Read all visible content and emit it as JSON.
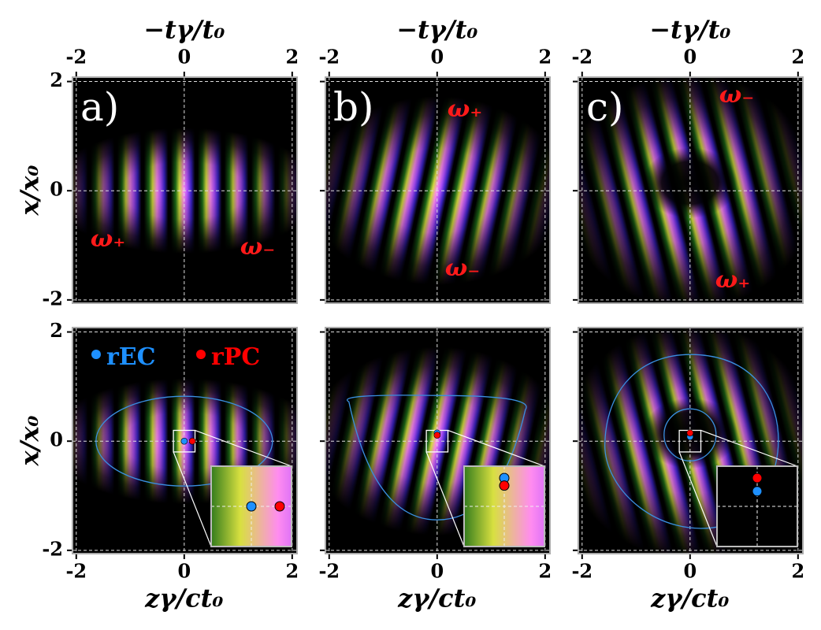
{
  "chart_data": [
    {
      "type": "image",
      "panel_label": "a)",
      "x2label": "−tγ/t₀",
      "ylabel": "x/x₀",
      "x2lim": [
        -2.07,
        2.09
      ],
      "ylim": [
        -2.06,
        2.08
      ],
      "x2ticks": [
        -2,
        0,
        2
      ],
      "yticks": [
        -2,
        0,
        2
      ],
      "annotations": [
        "ω₊",
        "ω₋"
      ]
    },
    {
      "type": "image",
      "panel_label": "b)",
      "x2label": "−tγ/t₀",
      "x2lim": [
        -2.07,
        2.09
      ],
      "ylim": [
        -2.06,
        2.08
      ],
      "x2ticks": [
        -2,
        0,
        2
      ],
      "yticks": [
        -2,
        0,
        2
      ],
      "annotations": [
        "ω₊",
        "ω₋"
      ]
    },
    {
      "type": "image",
      "panel_label": "c)",
      "x2label": "−tγ/t₀",
      "x2lim": [
        -2.07,
        2.09
      ],
      "ylim": [
        -2.06,
        2.08
      ],
      "x2ticks": [
        -2,
        0,
        2
      ],
      "yticks": [
        -2,
        0,
        2
      ],
      "annotations": [
        "ω₋",
        "ω₊"
      ]
    },
    {
      "type": "scatter",
      "xlabel": "zγ/ct₀",
      "ylabel": "x/x₀",
      "xlim": [
        -2.07,
        2.09
      ],
      "ylim": [
        -2.06,
        2.08
      ],
      "xticks": [
        -2,
        0,
        2
      ],
      "yticks": [
        -2,
        0,
        2
      ],
      "series": [
        {
          "name": "rEC",
          "color": "#1e90ff",
          "x": [
            0
          ],
          "values": [
            0
          ]
        },
        {
          "name": "rPC",
          "color": "#ff0000",
          "x": [
            0.15
          ],
          "values": [
            0
          ]
        }
      ]
    },
    {
      "type": "scatter",
      "xlabel": "zγ/ct₀",
      "xlim": [
        -2.07,
        2.09
      ],
      "ylim": [
        -2.06,
        2.08
      ],
      "xticks": [
        -2,
        0,
        2
      ],
      "yticks": [
        -2,
        0,
        2
      ],
      "series": [
        {
          "color": "#1e90ff",
          "x": [
            0
          ],
          "values": [
            0.15
          ]
        },
        {
          "color": "#ff0000",
          "x": [
            0
          ],
          "values": [
            0.11
          ]
        }
      ]
    },
    {
      "type": "scatter",
      "xlabel": "zγ/ct₀",
      "xlim": [
        -2.07,
        2.09
      ],
      "ylim": [
        -2.06,
        2.08
      ],
      "xticks": [
        -2,
        0,
        2
      ],
      "yticks": [
        -2,
        0,
        2
      ],
      "series": [
        {
          "color": "#1e90ff",
          "x": [
            0
          ],
          "values": [
            0.08
          ]
        },
        {
          "color": "#ff0000",
          "x": [
            0
          ],
          "values": [
            0.15
          ]
        }
      ]
    }
  ]
}
